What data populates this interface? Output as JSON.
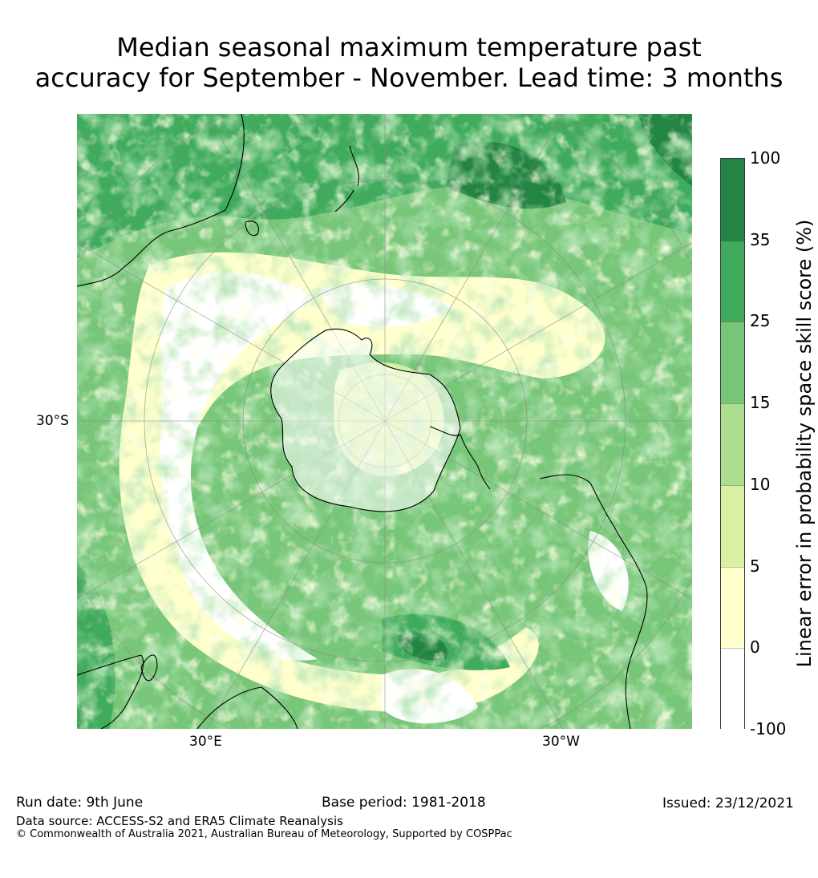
{
  "title": {
    "line1": "Median seasonal maximum temperature past",
    "line2": "accuracy for September - November. Lead time: 3 months"
  },
  "map": {
    "projection": "south-polar stereographic",
    "lat_label": "30°S",
    "lon_labels": [
      "30°E",
      "30°W"
    ],
    "palette": {
      "below_0": "#ffffff",
      "0_5": "#ffffcc",
      "5_10": "#d9f0a3",
      "10_15": "#addd8e",
      "15_25": "#78c679",
      "25_35": "#41ab5d",
      "35_100": "#238443",
      "coast": "#000000",
      "grid": "#888888"
    }
  },
  "colorbar": {
    "title": "Linear error in probability space skill score (%)",
    "ticks": [
      "100",
      "35",
      "25",
      "15",
      "10",
      "5",
      "0",
      "-100"
    ],
    "colors": [
      "#238443",
      "#41ab5d",
      "#78c679",
      "#addd8e",
      "#d9f0a3",
      "#ffffcc",
      "#ffffff"
    ]
  },
  "footer": {
    "run_date": "Run date: 9th June",
    "base_period": "Base period: 1981-2018",
    "issued": "Issued: 23/12/2021",
    "data_source": "Data source: ACCESS-S2 and ERA5 Climate Reanalysis",
    "copyright": "© Commonwealth of Australia 2021, Australian Bureau of Meteorology, Supported by COSPPac"
  }
}
